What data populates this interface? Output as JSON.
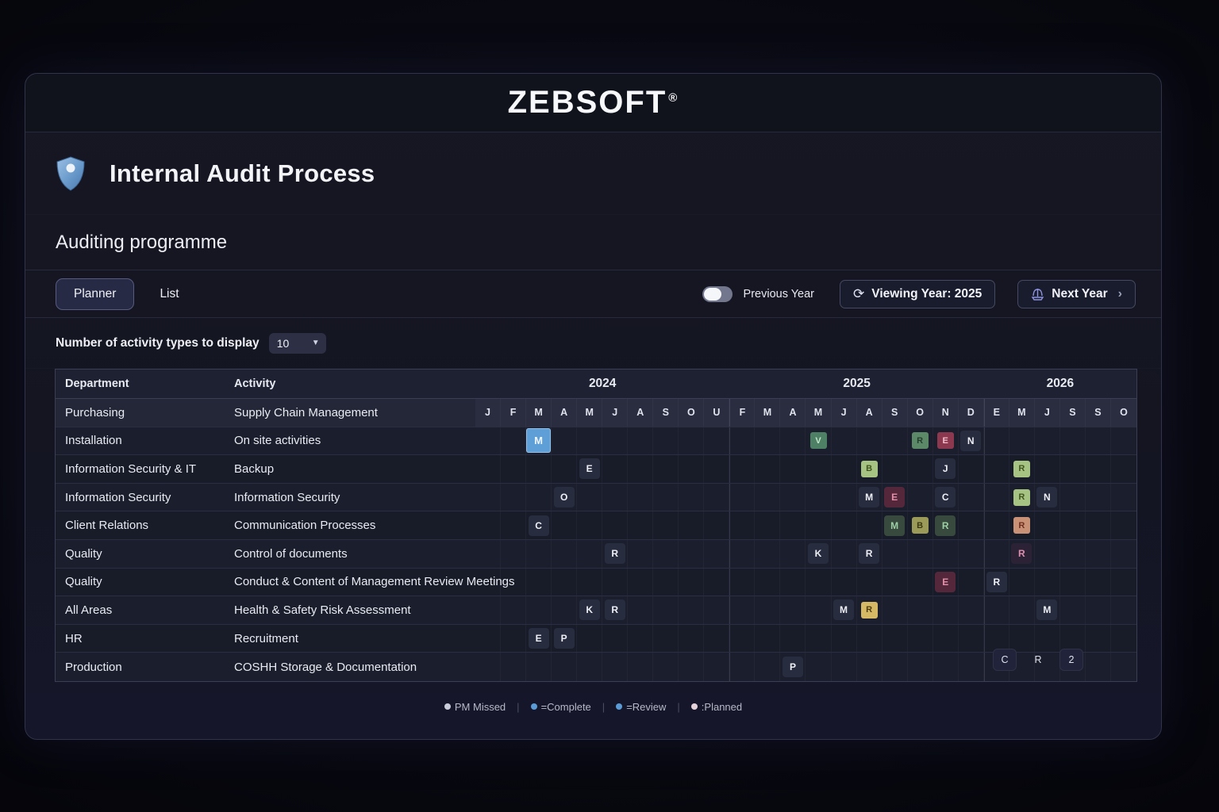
{
  "brand": {
    "name": "ZEBSOFT",
    "registered": "®"
  },
  "page": {
    "title": "Internal Audit Process",
    "subtitle": "Auditing programme"
  },
  "toolbar": {
    "tabs": [
      {
        "label": "Planner",
        "active": true
      },
      {
        "label": "List",
        "active": false
      }
    ],
    "previous_year_label": "Previous Year",
    "viewing_year_label": "Viewing Year: 2025",
    "next_year_label": "Next Year"
  },
  "display_control": {
    "label": "Number of activity types to display",
    "value": "10"
  },
  "planner": {
    "columns": {
      "department": "Department",
      "activity": "Activity"
    },
    "years": [
      {
        "label": "2024",
        "span": 10
      },
      {
        "label": "2025",
        "span": 10
      },
      {
        "label": "2026",
        "span": 6
      }
    ],
    "months": [
      "J",
      "F",
      "M",
      "A",
      "M",
      "J",
      "A",
      "S",
      "O",
      "U",
      "F",
      "M",
      "A",
      "M",
      "J",
      "A",
      "S",
      "O",
      "N",
      "D",
      "E",
      "M",
      "J",
      "S",
      "S",
      "O"
    ],
    "cell_styles": {
      "default": {
        "bg": "#282c3f",
        "fg": "#eef0f6"
      },
      "blue": {
        "bg": "#5f9fd8",
        "fg": "#eef5fc"
      },
      "green": {
        "bg": "#4e8066",
        "fg": "#c2e6cb"
      },
      "green-dark-text": {
        "bg": "#5c8a68",
        "fg": "#23402c"
      },
      "green-deep": {
        "bg": "#38493d",
        "fg": "#9ccfa5"
      },
      "green-light": {
        "bg": "#a6c383",
        "fg": "#41551f"
      },
      "red": {
        "bg": "#8c3950",
        "fg": "#f3bdcb"
      },
      "red-dark": {
        "bg": "#54283a",
        "fg": "#e290aa"
      },
      "salmon": {
        "bg": "#c99277",
        "fg": "#6e2f1f"
      },
      "gold": {
        "bg": "#d6b964",
        "fg": "#4d3c0e"
      },
      "pink-text": {
        "bg": "#2b2236",
        "fg": "#df8fae"
      },
      "olive": {
        "bg": "#9c9a58",
        "fg": "#3b3a12"
      }
    },
    "rows": [
      {
        "department": "Purchasing",
        "activity": "Supply Chain Management",
        "month_header": true,
        "cells": []
      },
      {
        "department": "Installation",
        "activity": "On site activities",
        "cells": [
          {
            "col": 3,
            "label": "M",
            "style": "blue",
            "size": "large"
          },
          {
            "col": 14,
            "label": "V",
            "style": "green",
            "size": "small"
          },
          {
            "col": 18,
            "label": "R",
            "style": "green-dark-text",
            "size": "small"
          },
          {
            "col": 19,
            "label": "E",
            "style": "red",
            "size": "small"
          },
          {
            "col": 20,
            "label": "N",
            "style": "default"
          }
        ]
      },
      {
        "department": "Information Security & IT",
        "activity": "Backup",
        "cells": [
          {
            "col": 5,
            "label": "E",
            "style": "default"
          },
          {
            "col": 16,
            "label": "B",
            "style": "green-light",
            "size": "small"
          },
          {
            "col": 19,
            "label": "J",
            "style": "default"
          },
          {
            "col": 22,
            "label": "R",
            "style": "green-light",
            "size": "small"
          }
        ]
      },
      {
        "department": "Information Security",
        "activity": "Information Security",
        "cells": [
          {
            "col": 4,
            "label": "O",
            "style": "default"
          },
          {
            "col": 16,
            "label": "M",
            "style": "default"
          },
          {
            "col": 17,
            "label": "E",
            "style": "red-dark"
          },
          {
            "col": 19,
            "label": "C",
            "style": "default"
          },
          {
            "col": 22,
            "label": "R",
            "style": "green-light",
            "size": "small"
          },
          {
            "col": 23,
            "label": "N",
            "style": "default"
          }
        ]
      },
      {
        "department": "Client Relations",
        "activity": "Communication Processes",
        "cells": [
          {
            "col": 3,
            "label": "C",
            "style": "default"
          },
          {
            "col": 17,
            "label": "M",
            "style": "green-deep"
          },
          {
            "col": 18,
            "label": "B",
            "style": "olive",
            "size": "small"
          },
          {
            "col": 19,
            "label": "R",
            "style": "green-deep"
          },
          {
            "col": 22,
            "label": "R",
            "style": "salmon",
            "size": "small"
          }
        ]
      },
      {
        "department": "Quality",
        "activity": "Control of documents",
        "cells": [
          {
            "col": 6,
            "label": "R",
            "style": "default"
          },
          {
            "col": 14,
            "label": "K",
            "style": "default"
          },
          {
            "col": 16,
            "label": "R",
            "style": "default"
          },
          {
            "col": 22,
            "label": "R",
            "style": "pink-text"
          }
        ]
      },
      {
        "department": "Quality",
        "activity": "Conduct & Content of Management Review Meetings",
        "cells": [
          {
            "col": 19,
            "label": "E",
            "style": "red-dark"
          },
          {
            "col": 21,
            "label": "R",
            "style": "default"
          }
        ]
      },
      {
        "department": "All Areas",
        "activity": "Health & Safety Risk Assessment",
        "cells": [
          {
            "col": 5,
            "label": "K",
            "style": "default"
          },
          {
            "col": 6,
            "label": "R",
            "style": "default"
          },
          {
            "col": 15,
            "label": "M",
            "style": "default"
          },
          {
            "col": 16,
            "label": "R",
            "style": "gold",
            "size": "small"
          },
          {
            "col": 23,
            "label": "M",
            "style": "default"
          }
        ]
      },
      {
        "department": "HR",
        "activity": "Recruitment",
        "cells": [
          {
            "col": 3,
            "label": "E",
            "style": "default"
          },
          {
            "col": 4,
            "label": "P",
            "style": "default"
          }
        ]
      },
      {
        "department": "Production",
        "activity": "COSHH Storage & Documentation",
        "cells": [
          {
            "col": 13,
            "label": "P",
            "style": "default"
          }
        ]
      }
    ]
  },
  "legend": {
    "items": [
      {
        "label": "PM Missed",
        "dot_color": "#c9ccda"
      },
      {
        "label": "=Complete",
        "dot_color": "#5b9bd5"
      },
      {
        "label": "=Review",
        "dot_color": "#5b9bd5"
      },
      {
        "label": ":Planned",
        "dot_color": "#e3d3d8"
      }
    ],
    "separator": "|"
  },
  "footer_buttons": [
    {
      "label": "C",
      "boxed": true
    },
    {
      "label": "R",
      "boxed": false
    },
    {
      "label": "2",
      "boxed": true
    }
  ]
}
